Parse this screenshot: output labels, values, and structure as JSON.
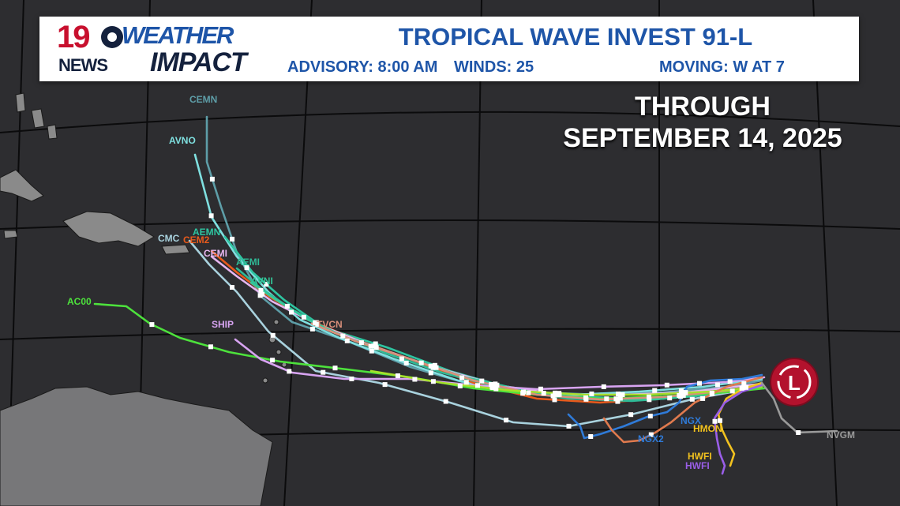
{
  "header": {
    "logo_number": "19",
    "logo_news": "NEWS",
    "brand_weather": "WEATHER",
    "brand_impact": "IMPACT",
    "title": "TROPICAL WAVE INVEST 91-L",
    "advisory": "ADVISORY: 8:00 AM",
    "winds": "WINDS: 25",
    "moving": "MOVING: W AT 7"
  },
  "forecast_window": {
    "line1": "THROUGH",
    "line2": "SEPTEMBER 14, 2025"
  },
  "storm_marker": {
    "symbol": "L",
    "color": "#b3122d"
  },
  "track_labels": {
    "cemn": "CEMN",
    "avno": "AVNO",
    "aemn": "AEMN",
    "cmc": "CMC",
    "cem2": "CEM2",
    "cemi": "CEMI",
    "aemi": "AEMI",
    "avni": "AVNI",
    "ac00": "AC00",
    "ship": "SHIP",
    "tvcn": "TVCN",
    "ngx": "NGX",
    "ngx2": "NGX2",
    "hmon": "HMON",
    "hwfi_a": "HWFI",
    "hwfi_b": "HWFI",
    "nvgm": "NVGM"
  },
  "track_colors": {
    "cemn": "#5e9ea8",
    "avno": "#7fe0e0",
    "aemn": "#2ec4a0",
    "cmc": "#a9d2de",
    "cem2": "#e85a1c",
    "cemi": "#e7b6f0",
    "aemi": "#2fb996",
    "avni": "#33c79a",
    "ac00": "#4de23c",
    "ship": "#d8a4f2",
    "tvcn": "#d98f7a",
    "ngx": "#2f7bd9",
    "ngx2": "#2f7bd9",
    "hmon": "#f2c21f",
    "hwfi": "#9a5ee8",
    "nvgm": "#9a9a9a",
    "lbar": "#a6e02c"
  }
}
